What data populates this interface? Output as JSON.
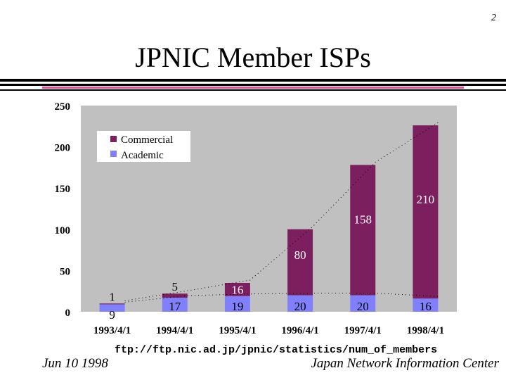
{
  "slide": {
    "page_number": "2",
    "title": "JPNIC Member ISPs",
    "source_url": "ftp://ftp.nic.ad.jp/jpnic/statistics/num_of_members",
    "footer_date": "Jun 10 1998",
    "footer_org": "Japan Network Information Center"
  },
  "colors": {
    "commercial": "#7b1f5e",
    "academic": "#8080ff",
    "plot_background": "#c0c0c0",
    "title_rule_accent": "#e0509a"
  },
  "chart_data": {
    "type": "bar",
    "stacked": true,
    "categories": [
      "1993/4/1",
      "1994/4/1",
      "1995/4/1",
      "1996/4/1",
      "1997/4/1",
      "1998/4/1"
    ],
    "series": [
      {
        "name": "Academic",
        "values": [
          9,
          17,
          19,
          20,
          20,
          16
        ]
      },
      {
        "name": "Commercial",
        "values": [
          1,
          5,
          16,
          80,
          158,
          210
        ]
      }
    ],
    "data_labels": {
      "Academic": [
        "9",
        "17",
        "19",
        "20",
        "20",
        "16"
      ],
      "Commercial": [
        "1",
        "5",
        "16",
        "80",
        "158",
        "210"
      ]
    },
    "ylim": [
      0,
      250
    ],
    "yticks": [
      0,
      50,
      100,
      150,
      200,
      250
    ],
    "ytick_labels": [
      "0",
      "50",
      "100",
      "150",
      "200",
      "250"
    ],
    "legend": [
      "Commercial",
      "Academic"
    ],
    "legend_position": "top-left",
    "grid": false,
    "trend_lines": "dotted lines through totals and academic values"
  }
}
